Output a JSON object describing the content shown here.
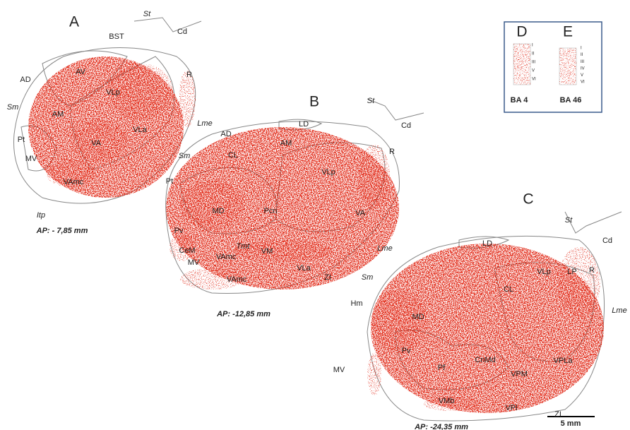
{
  "panels": [
    {
      "letter": "A",
      "caption": "AP: - 7,85 mm",
      "labels": [
        "St",
        "BST",
        "Cd",
        "AD",
        "AV",
        "VLp",
        "R",
        "Sm",
        "AM",
        "Lme",
        "Pt",
        "VLa",
        "MV",
        "VA",
        "VAmc",
        "Itp"
      ]
    },
    {
      "letter": "B",
      "caption": "AP: -12,85 mm",
      "labels": [
        "St",
        "Cd",
        "LD",
        "AD",
        "AM",
        "R",
        "Sm",
        "CL",
        "VLp",
        "Pt",
        "Pv",
        "MD",
        "Pcn",
        "VA",
        "CeM",
        "Tmt",
        "Lme",
        "MV",
        "VAmc",
        "VM",
        "VLa",
        "VAmc",
        "ZI"
      ]
    },
    {
      "letter": "C",
      "caption": "AP: -24,35 mm",
      "labels": [
        "St",
        "Cd",
        "LD",
        "VLp",
        "LP",
        "R",
        "Sm",
        "CL",
        "Lme",
        "Hm",
        "MD",
        "Pv",
        "MV",
        "Pf",
        "CnMd",
        "VPM",
        "VPLa",
        "VMb",
        "VPl",
        "ZI"
      ]
    }
  ],
  "inset": {
    "columns": [
      {
        "letter": "D",
        "layers": [
          "I",
          "II",
          "III",
          "V",
          "VI"
        ],
        "area": "BA 4"
      },
      {
        "letter": "E",
        "layers": [
          "I",
          "II",
          "III",
          "IV",
          "V",
          "VI"
        ],
        "area": "BA 46"
      }
    ]
  },
  "scale_bar": "5 mm"
}
